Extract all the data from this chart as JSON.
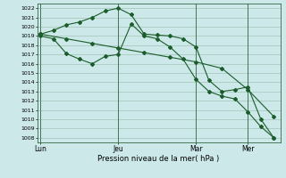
{
  "xlabel": "Pression niveau de la mer( hPa )",
  "bg_color": "#cce8e8",
  "grid_color": "#99bbaa",
  "line_color": "#1a5c2a",
  "vline_color": "#336644",
  "ylim": [
    1007.5,
    1022.5
  ],
  "yticks": [
    1008,
    1009,
    1010,
    1011,
    1012,
    1013,
    1014,
    1015,
    1016,
    1017,
    1018,
    1019,
    1020,
    1021,
    1022
  ],
  "xtick_labels": [
    "Lun",
    "Jeu",
    "Mar",
    "Mer"
  ],
  "xtick_positions": [
    0,
    24,
    48,
    64
  ],
  "xlim": [
    -1,
    74
  ],
  "vline_positions": [
    0,
    24,
    48,
    64
  ],
  "line1_x": [
    0,
    4,
    8,
    12,
    16,
    20,
    24,
    28,
    32,
    36,
    40,
    44,
    48,
    52,
    56,
    60,
    64,
    68,
    72
  ],
  "line1_y": [
    1019.2,
    1019.6,
    1020.2,
    1020.5,
    1021.0,
    1021.7,
    1022.0,
    1021.3,
    1019.2,
    1019.1,
    1019.0,
    1018.7,
    1017.8,
    1014.2,
    1013.0,
    1013.2,
    1013.5,
    1010.0,
    1008.0
  ],
  "line2_x": [
    0,
    4,
    8,
    12,
    16,
    20,
    24,
    28,
    32,
    36,
    40,
    44,
    48,
    52,
    56,
    60,
    64,
    68,
    72
  ],
  "line2_y": [
    1019.0,
    1018.7,
    1017.1,
    1016.5,
    1016.0,
    1016.8,
    1017.0,
    1020.3,
    1019.0,
    1018.7,
    1017.8,
    1016.5,
    1014.3,
    1013.0,
    1012.5,
    1012.2,
    1010.8,
    1009.2,
    1008.0
  ],
  "line3_x": [
    0,
    8,
    16,
    24,
    32,
    40,
    48,
    56,
    64,
    72
  ],
  "line3_y": [
    1019.2,
    1018.7,
    1018.2,
    1017.7,
    1017.2,
    1016.7,
    1016.2,
    1015.5,
    1013.2,
    1010.3
  ],
  "ytick_fontsize": 4.5,
  "xtick_fontsize": 5.5,
  "xlabel_fontsize": 6.0
}
